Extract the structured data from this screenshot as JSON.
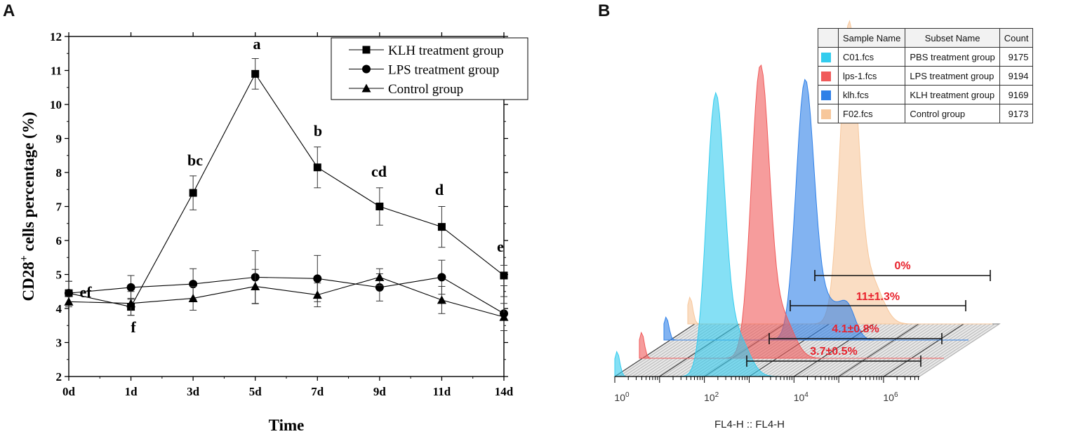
{
  "panel_labels": {
    "a": "A",
    "b": "B"
  },
  "chart_data": [
    {
      "type": "line",
      "title": "",
      "xlabel": "Time",
      "ylabel_main": "CD28",
      "ylabel_sup": "+",
      "ylabel_rest": " cells percentage (%)",
      "categories": [
        "0d",
        "1d",
        "3d",
        "5d",
        "7d",
        "9d",
        "11d",
        "14d"
      ],
      "ylim": [
        2,
        12
      ],
      "yticks": [
        "2",
        "3",
        "4",
        "5",
        "6",
        "7",
        "8",
        "9",
        "10",
        "11",
        "12"
      ],
      "legend_position": "top-right",
      "series": [
        {
          "name": "KLH treatment group",
          "marker": "square",
          "values": [
            4.45,
            4.05,
            7.4,
            10.9,
            8.15,
            7.0,
            6.4,
            4.97
          ],
          "errors": [
            0.35,
            0.25,
            0.5,
            0.45,
            0.6,
            0.55,
            0.6,
            0.3
          ]
        },
        {
          "name": "LPS treatment group",
          "marker": "circle",
          "values": [
            4.45,
            4.62,
            4.72,
            4.92,
            4.88,
            4.62,
            4.92,
            3.85
          ],
          "errors": [
            0.35,
            0.35,
            0.45,
            0.78,
            0.68,
            0.4,
            0.5,
            0.5
          ]
        },
        {
          "name": "Control group",
          "marker": "triangle",
          "values": [
            4.2,
            4.15,
            4.3,
            4.65,
            4.4,
            4.92,
            4.25,
            3.75
          ],
          "errors": [
            0.15,
            0.35,
            0.35,
            0.5,
            0.35,
            0.25,
            0.4,
            0.4
          ]
        }
      ],
      "significance_letters": [
        {
          "category": "0d",
          "label": "ef"
        },
        {
          "category": "1d",
          "label": "f"
        },
        {
          "category": "3d",
          "label": "bc"
        },
        {
          "category": "5d",
          "label": "a"
        },
        {
          "category": "7d",
          "label": "b"
        },
        {
          "category": "9d",
          "label": "cd"
        },
        {
          "category": "11d",
          "label": "d"
        },
        {
          "category": "14d",
          "label": "e"
        }
      ]
    },
    {
      "type": "histogram",
      "title": "",
      "xlabel": "FL4-H :: FL4-H",
      "xscale": "log",
      "x_tick_bases": [
        "10",
        "10",
        "10",
        "10"
      ],
      "x_tick_exponents": [
        "0",
        "2",
        "4",
        "6"
      ],
      "table_headers": [
        "Sample Name",
        "Subset Name",
        "Count"
      ],
      "series": [
        {
          "sample": "C01.fcs",
          "subset": "PBS treatment  group",
          "count": "9175",
          "color": "#33CCEE",
          "peak_log10": 2.25,
          "gate_label": "3.7±0.5%"
        },
        {
          "sample": "lps-1.fcs",
          "subset": "LPS treatment group",
          "count": "9194",
          "color": "#F05A5A",
          "peak_log10": 2.7,
          "gate_label": "4.1±0.8%"
        },
        {
          "sample": "klh.fcs",
          "subset": "KLH treatment group",
          "count": "9169",
          "color": "#2F80E8",
          "peak_log10": 3.15,
          "gate_label": "11±1.3%"
        },
        {
          "sample": "F02.fcs",
          "subset": "Control group",
          "count": "9173",
          "color": "#F7C79B",
          "peak_log10": 3.6,
          "gate_label": "0%"
        }
      ],
      "label_color": "#E8212B"
    }
  ]
}
